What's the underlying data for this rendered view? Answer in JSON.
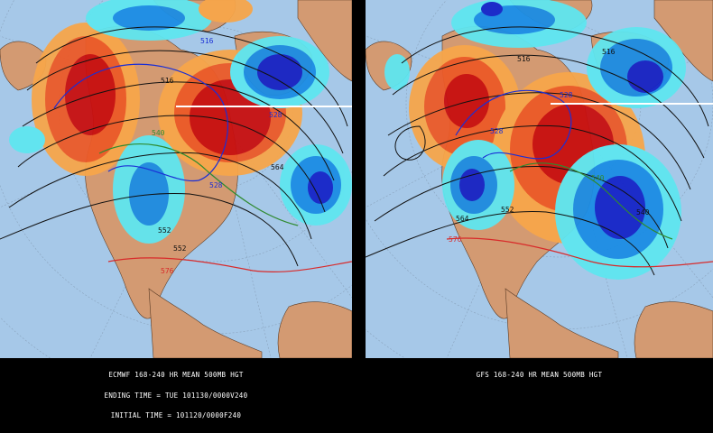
{
  "panels": [
    {
      "id": "left",
      "model": "ECMWF",
      "caption_lines": [
        "ECMWF 168-240 HR MEAN 500MB HGT",
        "ENDING TIME = TUE 101130/0000V240",
        "INITIAL TIME = 101120/0000F240"
      ],
      "contour_labels": [
        "516",
        "516",
        "528",
        "528",
        "540",
        "552",
        "564",
        "576",
        "552"
      ]
    },
    {
      "id": "right",
      "model": "GFS",
      "caption_lines": [
        "GFS 168-240 HR MEAN 500MB HGT"
      ],
      "contour_labels": [
        "516",
        "516",
        "528",
        "528",
        "540",
        "552",
        "564",
        "576",
        "540"
      ]
    }
  ],
  "colors": {
    "ocean": "#a6c8e8",
    "land": "#d39a72",
    "anomaly_pos_light": "#f7a64a",
    "anomaly_pos_mid": "#ec5a28",
    "anomaly_pos_strong": "#c80f0f",
    "anomaly_neg_light": "#5fe6f0",
    "anomaly_neg_mid": "#1b8de4",
    "anomaly_neg_strong": "#1524c8",
    "height_contour": "#111111",
    "contour_528": "#1a2fd6",
    "contour_576": "#d82a2a",
    "contour_540": "#2f8a2f"
  }
}
